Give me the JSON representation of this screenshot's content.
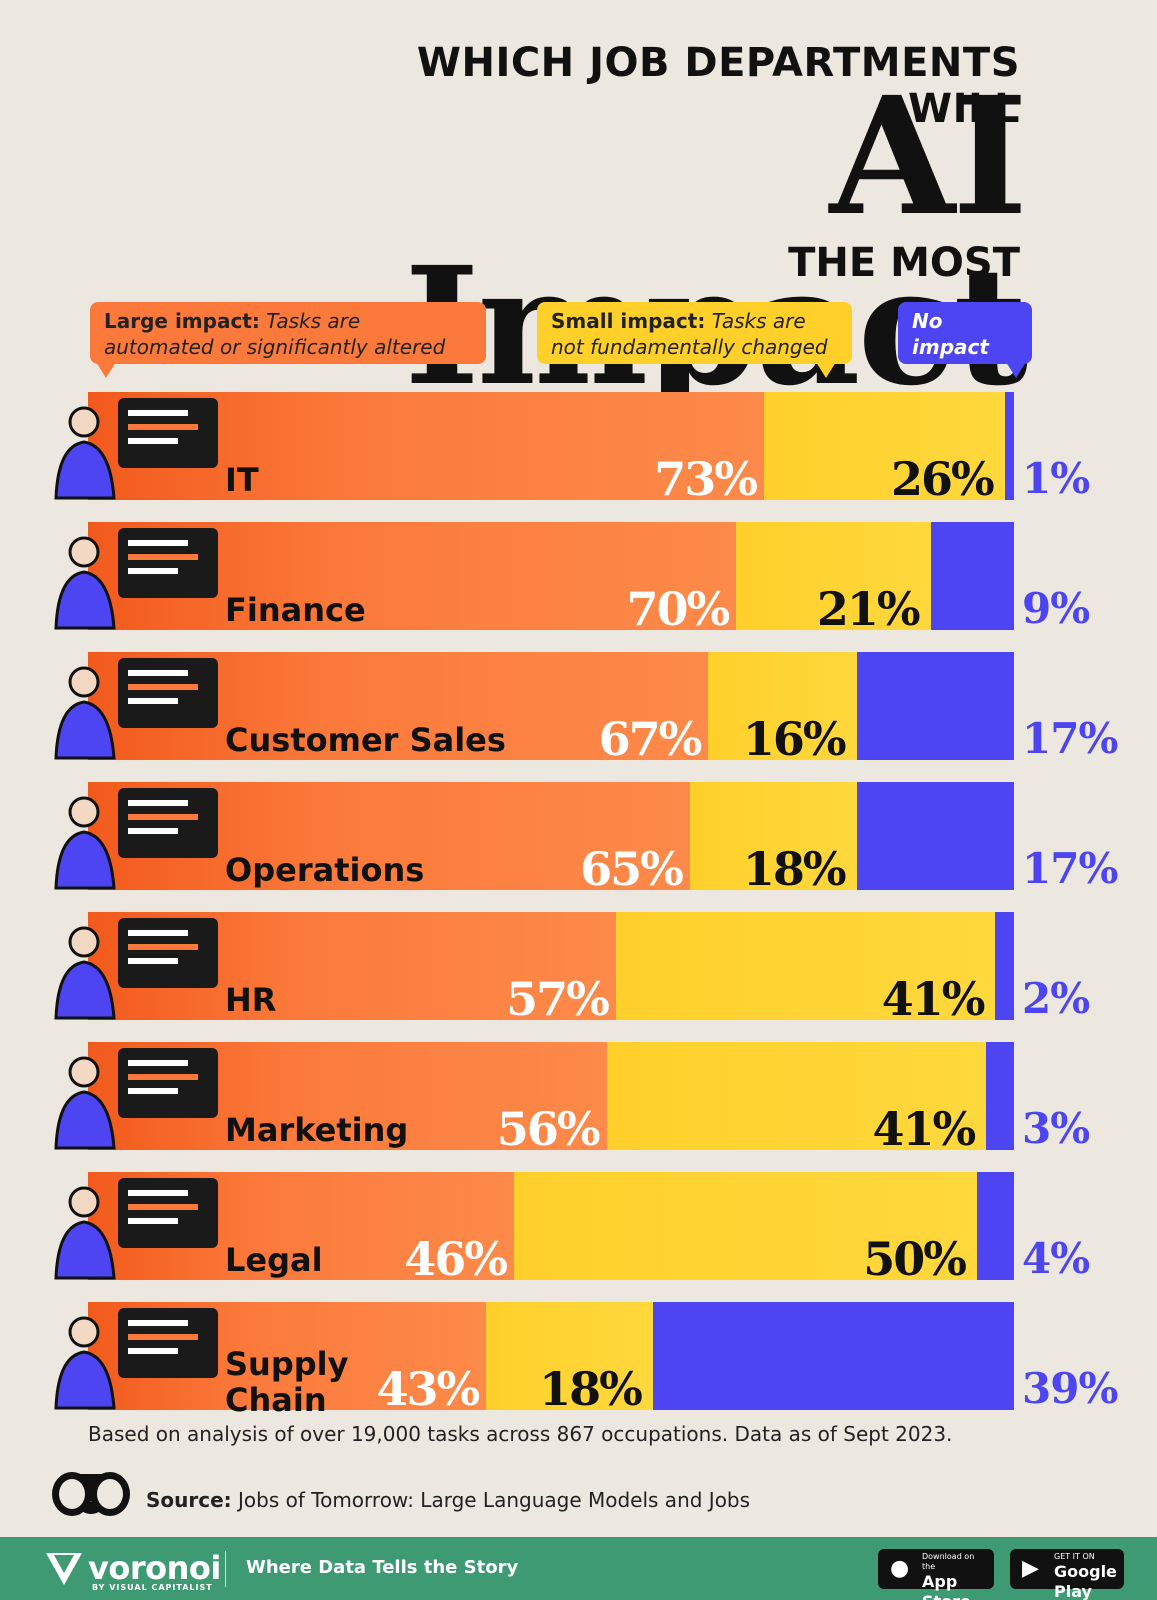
{
  "header": {
    "title_top": "WHICH JOB DEPARTMENTS WILL",
    "title_main": "AI Impact",
    "title_bottom": "THE MOST"
  },
  "legend": {
    "large_bold": "Large impact:",
    "large_text": " Tasks are automated or significantly altered",
    "small_bold": "Small impact:",
    "small_text": " Tasks are not fundamentally changed",
    "none": "No impact"
  },
  "chart_data": {
    "type": "bar",
    "stacked": true,
    "orientation": "horizontal",
    "title": "WHICH JOB DEPARTMENTS WILL AI Impact THE MOST",
    "categories": [
      "IT",
      "Finance",
      "Customer Sales",
      "Operations",
      "HR",
      "Marketing",
      "Legal",
      "Supply Chain"
    ],
    "series": [
      {
        "name": "Large impact",
        "values": [
          73,
          70,
          67,
          65,
          57,
          56,
          46,
          43
        ],
        "color": "#fb7a3b"
      },
      {
        "name": "Small impact",
        "values": [
          26,
          21,
          16,
          18,
          41,
          41,
          50,
          18
        ],
        "color": "#ffd02a"
      },
      {
        "name": "No impact",
        "values": [
          1,
          9,
          17,
          17,
          2,
          3,
          4,
          39
        ],
        "color": "#4d45f2"
      }
    ],
    "labels": {
      "large": [
        "73%",
        "70%",
        "67%",
        "65%",
        "57%",
        "56%",
        "46%",
        "43%"
      ],
      "small": [
        "26%",
        "21%",
        "16%",
        "18%",
        "41%",
        "41%",
        "50%",
        "18%"
      ],
      "none": [
        "1%",
        "9%",
        "17%",
        "17%",
        "2%",
        "3%",
        "4%",
        "39%"
      ]
    },
    "xlim": [
      0,
      100
    ],
    "grid": false,
    "legend_position": "top"
  },
  "rows": [
    {
      "label": "IT",
      "icon": "developer-icon"
    },
    {
      "label": "Finance",
      "icon": "coin-calculator-icon"
    },
    {
      "label": "Customer Sales",
      "icon": "package-delivery-icon"
    },
    {
      "label": "Operations",
      "icon": "calendar-planner-icon"
    },
    {
      "label": "HR",
      "icon": "video-interview-icon"
    },
    {
      "label": "Marketing",
      "icon": "web-marketing-icon"
    },
    {
      "label": "Legal",
      "icon": "scales-document-icon"
    },
    {
      "label": "Supply",
      "label2": "Chain",
      "icon": "route-box-icon"
    }
  ],
  "note": "Based on analysis of over 19,000 tasks across 867 occupations. Data as of Sept 2023.",
  "source": {
    "bold": "Source:",
    "text": " Jobs of Tomorrow: Large Language Models and Jobs"
  },
  "footer": {
    "brand": "voronoi",
    "brand_sub": "BY VISUAL CAPITALIST",
    "tagline": "Where Data Tells the Story",
    "appstore_small": "Download on the",
    "appstore_big": "App Store",
    "gplay_small": "GET IT ON",
    "gplay_big": "Google Play"
  },
  "colors": {
    "large": "#fb7a3b",
    "small": "#ffd02a",
    "none": "#4d45f2",
    "background": "#ece8df",
    "footer": "#3e9a72"
  }
}
